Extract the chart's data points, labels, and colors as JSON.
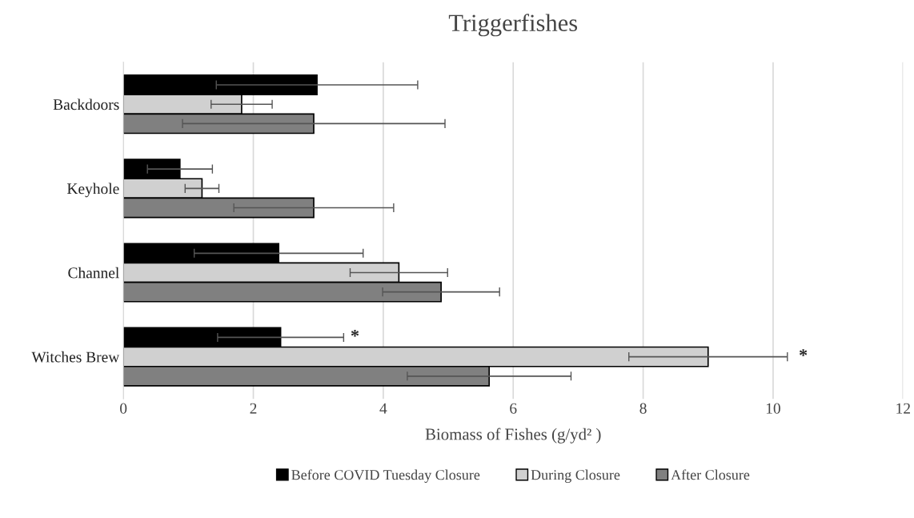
{
  "chart_data": {
    "type": "bar",
    "orientation": "horizontal",
    "title": "Triggerfishes",
    "xlabel": "Biomass of Fishes (g/yd² )",
    "categories": [
      "Backdoors",
      "Keyhole",
      "Channel",
      "Witches Brew"
    ],
    "series": [
      {
        "name": "Before COVID Tuesday Closure",
        "color": "#000000",
        "values": [
          2.98,
          0.87,
          2.39,
          2.42
        ],
        "errors": [
          1.55,
          0.5,
          1.3,
          0.97
        ]
      },
      {
        "name": "During Closure",
        "color": "#d0d0d0",
        "values": [
          1.82,
          1.21,
          4.24,
          9.0
        ],
        "errors": [
          0.47,
          0.26,
          0.75,
          1.22
        ]
      },
      {
        "name": "After Closure",
        "color": "#808080",
        "values": [
          2.93,
          2.93,
          4.89,
          5.63
        ],
        "errors": [
          2.02,
          1.23,
          0.9,
          1.26
        ]
      }
    ],
    "xlim": [
      0,
      12
    ],
    "xticks": [
      0,
      2,
      4,
      6,
      8,
      10,
      12
    ],
    "grid": "x",
    "legend": "bottom",
    "annotations": [
      "*",
      "*"
    ]
  }
}
